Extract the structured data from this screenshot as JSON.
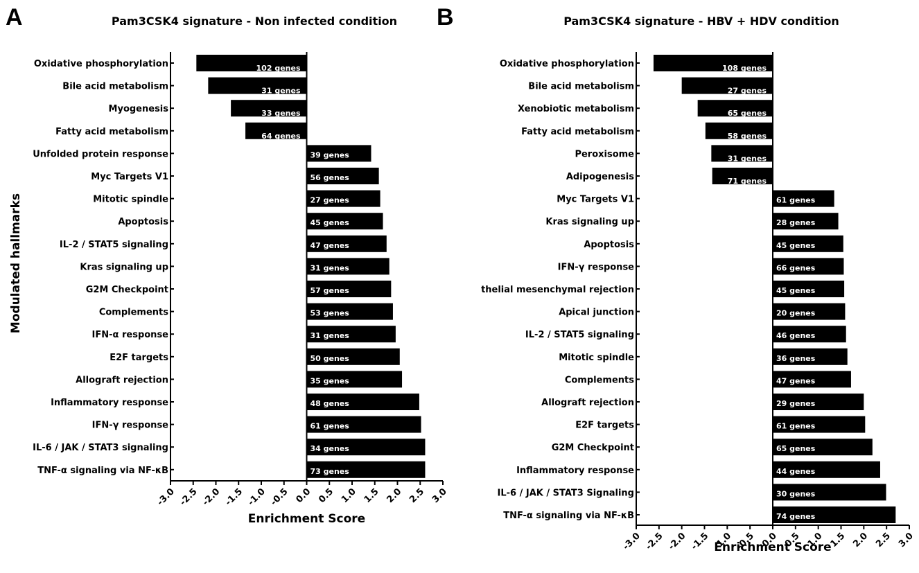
{
  "chart_data": [
    {
      "type": "bar",
      "orientation": "horizontal",
      "panel": "A",
      "title": "Pam3CSK4 signature - Non infected condition",
      "xlabel": "Enrichment Score",
      "ylabel": "Modulated hallmarks",
      "xlim": [
        -3.0,
        3.0
      ],
      "xticks": [
        "-3.0",
        "-2.5",
        "-2.0",
        "-1.5",
        "-1.0",
        "-0.5",
        "0.0",
        "0.5",
        "1.0",
        "1.5",
        "2.0",
        "2.5",
        "3.0"
      ],
      "categories": [
        "Oxidative phosphorylation",
        "Bile acid metabolism",
        "Myogenesis",
        "Fatty acid metabolism",
        "Unfolded protein response",
        "Myc Targets V1",
        "Mitotic spindle",
        "Apoptosis",
        "IL-2 / STAT5 signaling",
        "Kras signaling up",
        "G2M Checkpoint",
        "Complements",
        "IFN-α response",
        "E2F targets",
        "Allograft rejection",
        "Inflammatory response",
        "IFN-γ response",
        "IL-6 / JAK / STAT3 signaling",
        "TNF-α signaling via NF-κB"
      ],
      "values": [
        -2.43,
        -2.17,
        -1.67,
        -1.35,
        1.42,
        1.59,
        1.62,
        1.68,
        1.76,
        1.82,
        1.86,
        1.9,
        1.96,
        2.05,
        2.1,
        2.48,
        2.52,
        2.61,
        2.61
      ],
      "gene_labels": [
        "102 genes",
        "31 genes",
        "33 genes",
        "64 genes",
        "39 genes",
        "56 genes",
        "27 genes",
        "45 genes",
        "47 genes",
        "31 genes",
        "57 genes",
        "53 genes",
        "31 genes",
        "50 genes",
        "35 genes",
        "48 genes",
        "61 genes",
        "34 genes",
        "73 genes"
      ]
    },
    {
      "type": "bar",
      "orientation": "horizontal",
      "panel": "B",
      "title": "Pam3CSK4 signature - HBV + HDV condition",
      "xlabel": "Enrichment Score",
      "ylabel": "",
      "xlim": [
        -3.0,
        3.0
      ],
      "xticks": [
        "-3.0",
        "-2.5",
        "-2.0",
        "-1.5",
        "-1.0",
        "-0.5",
        "0.0",
        "0.5",
        "1.0",
        "1.5",
        "2.0",
        "2.5",
        "3.0"
      ],
      "categories": [
        "Oxidative phosphorylation",
        "Bile acid metabolism",
        "Xenobiotic metabolism",
        "Fatty acid metabolism",
        "Peroxisome",
        "Adipogenesis",
        "Myc Targets V1",
        "Kras signaling up",
        "Apoptosis",
        "IFN-γ response",
        "thelial mesenchymal rejection",
        "Apical junction",
        "IL-2 / STAT5 signaling",
        "Mitotic spindle",
        "Complements",
        "Allograft rejection",
        "E2F targets",
        "G2M Checkpoint",
        "Inflammatory response",
        "IL-6 / JAK / STAT3 Signaling",
        "TNF-α signaling via NF-κB"
      ],
      "values": [
        -2.62,
        -2.0,
        -1.65,
        -1.48,
        -1.35,
        -1.33,
        1.35,
        1.44,
        1.55,
        1.56,
        1.57,
        1.59,
        1.61,
        1.64,
        1.72,
        2.0,
        2.03,
        2.19,
        2.36,
        2.49,
        2.7
      ],
      "gene_labels": [
        "108 genes",
        "27 genes",
        "65 genes",
        "58 genes",
        "31 genes",
        "71 genes",
        "61 genes",
        "28 genes",
        "45 genes",
        "66 genes",
        "45 genes",
        "20 genes",
        "46 genes",
        "36 genes",
        "47 genes",
        "29 genes",
        "61 genes",
        "65 genes",
        "44 genes",
        "30 genes",
        "74 genes"
      ]
    }
  ]
}
